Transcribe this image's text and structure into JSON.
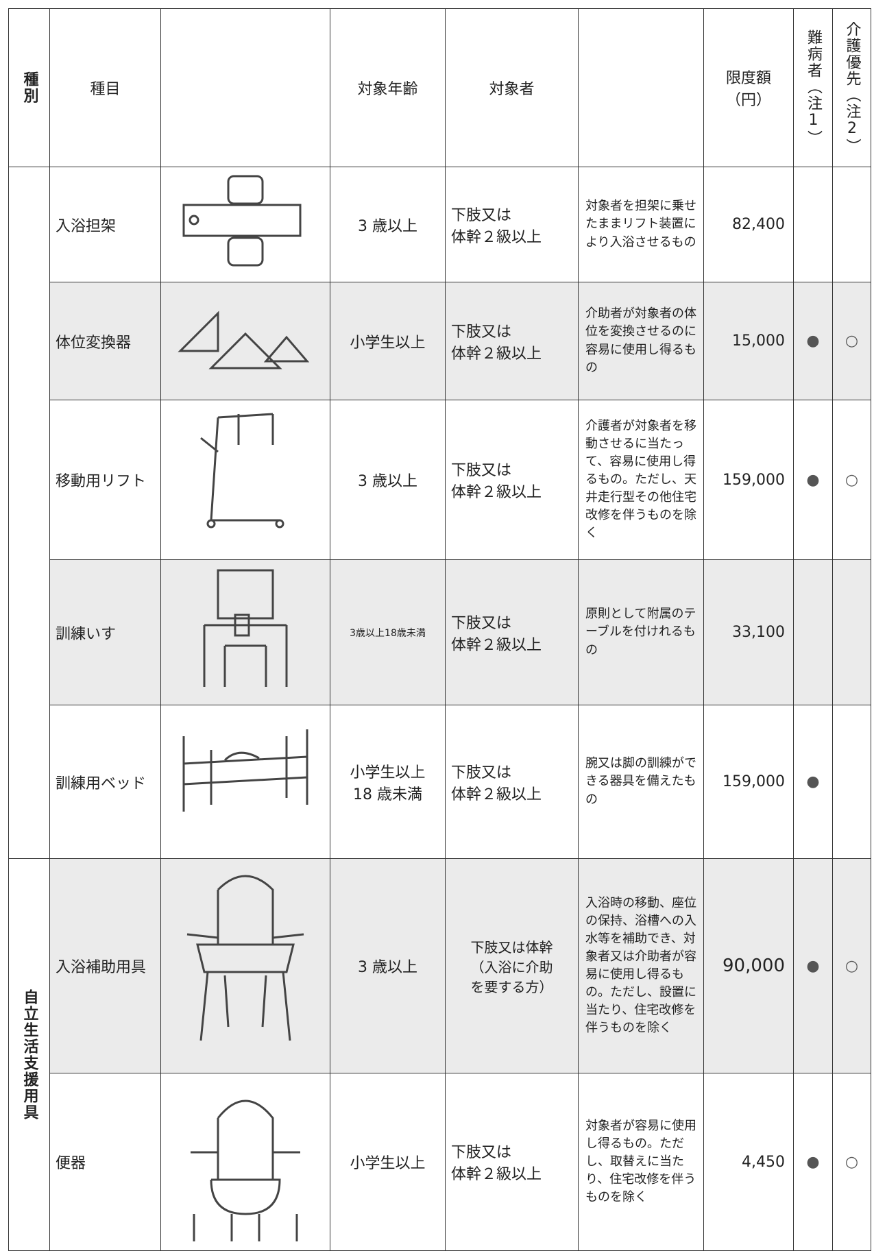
{
  "table": {
    "header": {
      "kind": "種別",
      "item": "種目",
      "age": "対象年齢",
      "target": "対象者",
      "limit": "限度額\n（円）",
      "nanbyo": "難病者（注1）",
      "kaigo": "介護優先（注2）"
    },
    "category_label": "自立生活支援用具",
    "rows": [
      {
        "item": "入浴担架",
        "age": "3 歳以上",
        "target": "下肢又は\n体幹２級以上",
        "description": "対象者を担架に乗せたままリフト装置により入浴させるもの",
        "limit": "82,400"
      },
      {
        "item": "体位変換器",
        "age": "小学生以上",
        "target": "下肢又は\n体幹２級以上",
        "description": "介助者が対象者の体位を変換させるのに容易に使用し得るもの",
        "limit": "15,000",
        "nanbyo": "●",
        "kaigo": "○"
      },
      {
        "item": "移動用リフト",
        "age": "3 歳以上",
        "target": "下肢又は\n体幹２級以上",
        "description": "介護者が対象者を移動させるに当たって、容易に使用し得るもの。ただし、天井走行型その他住宅改修を伴うものを除く",
        "limit": "159,000",
        "nanbyo": "●",
        "kaigo": "○"
      },
      {
        "item": "訓練いす",
        "age": "3歳以上18歳未満",
        "target": "下肢又は\n体幹２級以上",
        "description": "原則として附属のテーブルを付けれるもの",
        "limit": "33,100"
      },
      {
        "item": "訓練用ベッド",
        "age": "小学生以上\n18 歳未満",
        "target": "下肢又は\n体幹２級以上",
        "description": "腕又は脚の訓練ができる器具を備えたもの",
        "limit": "159,000",
        "nanbyo": "●"
      },
      {
        "item": "入浴補助用具",
        "age": "3 歳以上",
        "target": "下肢又は体幹\n（入浴に介助\nを要する方）",
        "description": "入浴時の移動、座位の保持、浴槽への入水等を補助でき、対象者又は介助者が容易に使用し得るもの。ただし、設置に当たり、住宅改修を伴うものを除く",
        "limit": "90,000",
        "nanbyo": "●",
        "kaigo": "○"
      },
      {
        "item": "便器",
        "age": "小学生以上",
        "target": "下肢又は\n体幹２級以上",
        "description": "対象者が容易に使用し得るもの。ただし、取替えに当たり、住宅改修を伴うものを除く",
        "limit": "4,450",
        "nanbyo": "●",
        "kaigo": "○"
      }
    ]
  }
}
